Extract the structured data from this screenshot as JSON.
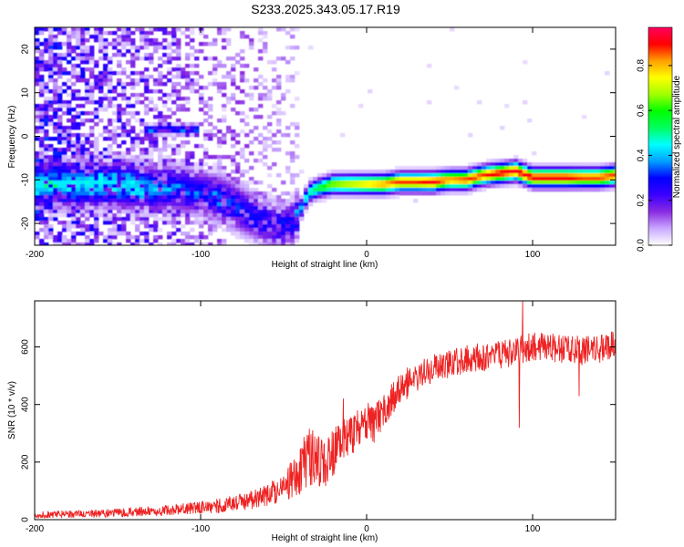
{
  "title": "S233.2025.343.05.17.R19",
  "colors": {
    "snr_line": "#ee2222",
    "axes": "#000000"
  },
  "chart_data": [
    {
      "type": "heatmap",
      "name": "spectrogram",
      "xlabel": "Height of straight line (km)",
      "ylabel": "Frequency (Hz)",
      "xlim": [
        -200,
        150
      ],
      "ylim": [
        -25,
        25
      ],
      "xticks": [
        -200,
        -100,
        0,
        100
      ],
      "yticks": [
        -20,
        -10,
        0,
        10,
        20
      ],
      "colorbar": {
        "label": "Normalized spectral amplitude",
        "range": [
          0,
          0.97
        ],
        "ticks": [
          "0.0",
          "0.2",
          "0.4",
          "0.6",
          "0.8"
        ],
        "colormap": [
          "#ffffff",
          "#c9a8ff",
          "#8a2be2",
          "#3b00ff",
          "#0000ff",
          "#00a0ff",
          "#00ffff",
          "#00ff60",
          "#00ff00",
          "#a0ff00",
          "#ffff00",
          "#ffa000",
          "#ff0000",
          "#ff0060"
        ]
      },
      "ridge": {
        "height_km": [
          -145,
          -130,
          -115,
          -100,
          -90,
          -80,
          -70,
          -60,
          -50,
          -45,
          -40,
          -35,
          -30,
          -20,
          -10,
          0,
          10,
          20,
          30,
          40,
          50,
          60,
          70,
          80,
          90,
          100,
          110,
          120,
          130,
          140,
          150
        ],
        "frequency_hz": [
          -11,
          -12,
          -12,
          -13,
          -14,
          -16,
          -18,
          -20,
          -21,
          -20,
          -17,
          -13,
          -12,
          -11,
          -11,
          -11,
          -11,
          -10.5,
          -10.5,
          -10.5,
          -10,
          -10,
          -9,
          -8.5,
          -8,
          -9.5,
          -9.5,
          -9.5,
          -9.5,
          -9.5,
          -9
        ],
        "peak_amplitude": [
          0.45,
          0.4,
          0.35,
          0.3,
          0.35,
          0.35,
          0.3,
          0.3,
          0.3,
          0.3,
          0.4,
          0.5,
          0.55,
          0.7,
          0.75,
          0.8,
          0.85,
          0.9,
          0.9,
          0.95,
          0.85,
          0.9,
          0.9,
          0.95,
          0.95,
          0.95,
          0.95,
          0.95,
          0.9,
          0.9,
          0.9
        ]
      },
      "secondary_band": {
        "height_km": [
          -135,
          -100
        ],
        "frequency_hz": 1.5
      },
      "noise_region_km": [
        -200,
        -40
      ]
    },
    {
      "type": "line",
      "name": "snr",
      "xlabel": "Height of straight line (km)",
      "ylabel": "SNR (10 * v/v)",
      "xlim": [
        -200,
        150
      ],
      "ylim": [
        0,
        760
      ],
      "xticks": [
        -200,
        -100,
        0,
        100
      ],
      "yticks": [
        0,
        200,
        400,
        600
      ],
      "x": [
        -200,
        -180,
        -160,
        -140,
        -120,
        -100,
        -90,
        -80,
        -70,
        -60,
        -50,
        -40,
        -35,
        -30,
        -25,
        -20,
        -15,
        -10,
        -5,
        0,
        5,
        10,
        15,
        20,
        25,
        30,
        35,
        40,
        50,
        60,
        70,
        80,
        90,
        95,
        100,
        110,
        120,
        130,
        140,
        150
      ],
      "y": [
        15,
        18,
        20,
        25,
        30,
        40,
        45,
        55,
        65,
        80,
        110,
        160,
        220,
        200,
        180,
        230,
        270,
        290,
        310,
        330,
        330,
        370,
        410,
        450,
        470,
        490,
        510,
        520,
        540,
        550,
        560,
        570,
        580,
        590,
        600,
        590,
        590,
        580,
        590,
        600
      ],
      "noise_amplitude": [
        12,
        12,
        14,
        16,
        18,
        22,
        25,
        28,
        32,
        38,
        50,
        80,
        110,
        90,
        80,
        90,
        85,
        75,
        70,
        70,
        70,
        60,
        55,
        55,
        55,
        50,
        50,
        50,
        50,
        50,
        50,
        50,
        50,
        50,
        50,
        50,
        50,
        50,
        50,
        50
      ],
      "spikes": [
        {
          "x": 94,
          "y": 760
        },
        {
          "x": 92,
          "y": 320
        },
        {
          "x": -14,
          "y": 420
        },
        {
          "x": 128,
          "y": 430
        }
      ]
    }
  ]
}
